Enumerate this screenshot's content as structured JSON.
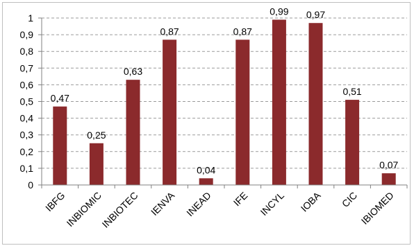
{
  "chart_data": {
    "type": "bar",
    "categories": [
      "IBFG",
      "INBIOMIC",
      "INBIOTEC",
      "IENVA",
      "INEAD",
      "IFE",
      "INCYL",
      "IOBA",
      "CIC",
      "IBIOMED"
    ],
    "values": [
      0.47,
      0.25,
      0.63,
      0.87,
      0.04,
      0.87,
      0.99,
      0.97,
      0.51,
      0.07
    ],
    "data_labels": [
      "0,47",
      "0,25",
      "0,63",
      "0,87",
      "0,04",
      "0,87",
      "0,99",
      "0,97",
      "0,51",
      "0,07"
    ],
    "y_ticks": [
      "0",
      "0,1",
      "0,2",
      "0,3",
      "0,4",
      "0,5",
      "0,6",
      "0,7",
      "0,8",
      "0,9",
      "1"
    ],
    "ylim": [
      0,
      1
    ],
    "grid": true,
    "bar_color": "#8b2a2c",
    "title": "",
    "xlabel": "",
    "ylabel": ""
  }
}
